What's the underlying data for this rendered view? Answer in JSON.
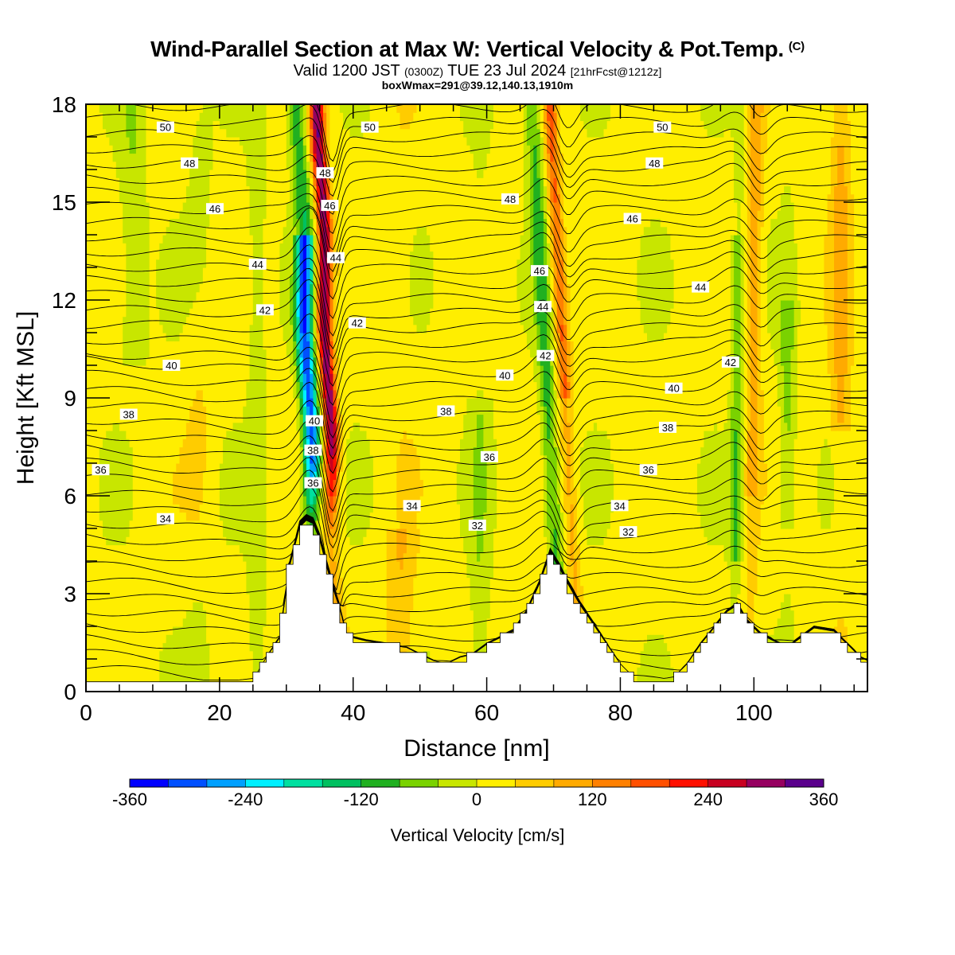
{
  "title": {
    "main": "Wind-Parallel Section at Max W: Vertical Velocity & Pot.Temp.",
    "copyright": "(C)",
    "valid_prefix": "Valid 1200 JST",
    "valid_zulu": "(0300Z)",
    "valid_date": "TUE 23 Jul 2024",
    "forecast": "[21hrFcst@1212z]",
    "box_info": "boxWmax=291@39.12,140.13,1910m"
  },
  "colorbar": {
    "label": "Vertical Velocity [cm/s]",
    "tick_labels": [
      "-360",
      "-240",
      "-120",
      "0",
      "120",
      "240",
      "360"
    ],
    "colors": [
      "#0000ff",
      "#0050ff",
      "#00a0ff",
      "#00f0ff",
      "#00e0a0",
      "#00c060",
      "#20b020",
      "#7ad200",
      "#c8e600",
      "#ffee00",
      "#ffcc00",
      "#ffaa00",
      "#ff8000",
      "#ff5000",
      "#ff1000",
      "#c80020",
      "#960060",
      "#5a008c"
    ]
  },
  "chart_data": {
    "type": "heatmap",
    "xlabel": "Distance [nm]",
    "ylabel": "Height [Kft MSL]",
    "xlim": [
      0,
      117
    ],
    "ylim": [
      0,
      18
    ],
    "xticks": [
      0,
      20,
      40,
      60,
      80,
      100
    ],
    "yticks": [
      0,
      3,
      6,
      9,
      12,
      15,
      18
    ],
    "field": "Vertical Velocity [cm/s]",
    "contour_field": "Potential temperature",
    "contour_levels": [
      32,
      34,
      36,
      38,
      40,
      42,
      44,
      46,
      48,
      50
    ],
    "contour_labels": [
      {
        "x": 11.9,
        "y": 17.3,
        "text": "50"
      },
      {
        "x": 42.5,
        "y": 17.3,
        "text": "50"
      },
      {
        "x": 86.3,
        "y": 17.3,
        "text": "50"
      },
      {
        "x": 15.5,
        "y": 16.2,
        "text": "48"
      },
      {
        "x": 35.8,
        "y": 15.9,
        "text": "48"
      },
      {
        "x": 63.5,
        "y": 15.1,
        "text": "48"
      },
      {
        "x": 85.1,
        "y": 16.2,
        "text": "48"
      },
      {
        "x": 19.3,
        "y": 14.8,
        "text": "46"
      },
      {
        "x": 36.5,
        "y": 14.9,
        "text": "46"
      },
      {
        "x": 81.8,
        "y": 14.5,
        "text": "46"
      },
      {
        "x": 67.9,
        "y": 12.9,
        "text": "46"
      },
      {
        "x": 25.7,
        "y": 13.1,
        "text": "44"
      },
      {
        "x": 37.4,
        "y": 13.3,
        "text": "44"
      },
      {
        "x": 68.4,
        "y": 11.8,
        "text": "44"
      },
      {
        "x": 92.0,
        "y": 12.4,
        "text": "44"
      },
      {
        "x": 26.8,
        "y": 11.7,
        "text": "42"
      },
      {
        "x": 40.6,
        "y": 11.3,
        "text": "42"
      },
      {
        "x": 68.8,
        "y": 10.3,
        "text": "42"
      },
      {
        "x": 96.5,
        "y": 10.1,
        "text": "42"
      },
      {
        "x": 12.8,
        "y": 10.0,
        "text": "40"
      },
      {
        "x": 34.2,
        "y": 8.3,
        "text": "40"
      },
      {
        "x": 62.7,
        "y": 9.7,
        "text": "40"
      },
      {
        "x": 88.0,
        "y": 9.3,
        "text": "40"
      },
      {
        "x": 6.4,
        "y": 8.5,
        "text": "38"
      },
      {
        "x": 53.9,
        "y": 8.6,
        "text": "38"
      },
      {
        "x": 34.0,
        "y": 7.4,
        "text": "38"
      },
      {
        "x": 87.1,
        "y": 8.1,
        "text": "38"
      },
      {
        "x": 2.2,
        "y": 6.8,
        "text": "36"
      },
      {
        "x": 34.0,
        "y": 6.4,
        "text": "36"
      },
      {
        "x": 60.4,
        "y": 7.2,
        "text": "36"
      },
      {
        "x": 84.2,
        "y": 6.8,
        "text": "36"
      },
      {
        "x": 11.9,
        "y": 5.3,
        "text": "34"
      },
      {
        "x": 48.8,
        "y": 5.7,
        "text": "34"
      },
      {
        "x": 79.9,
        "y": 5.7,
        "text": "34"
      },
      {
        "x": 58.6,
        "y": 5.1,
        "text": "32"
      },
      {
        "x": 81.2,
        "y": 4.9,
        "text": "32"
      }
    ],
    "max_w": "291 cm/s"
  }
}
